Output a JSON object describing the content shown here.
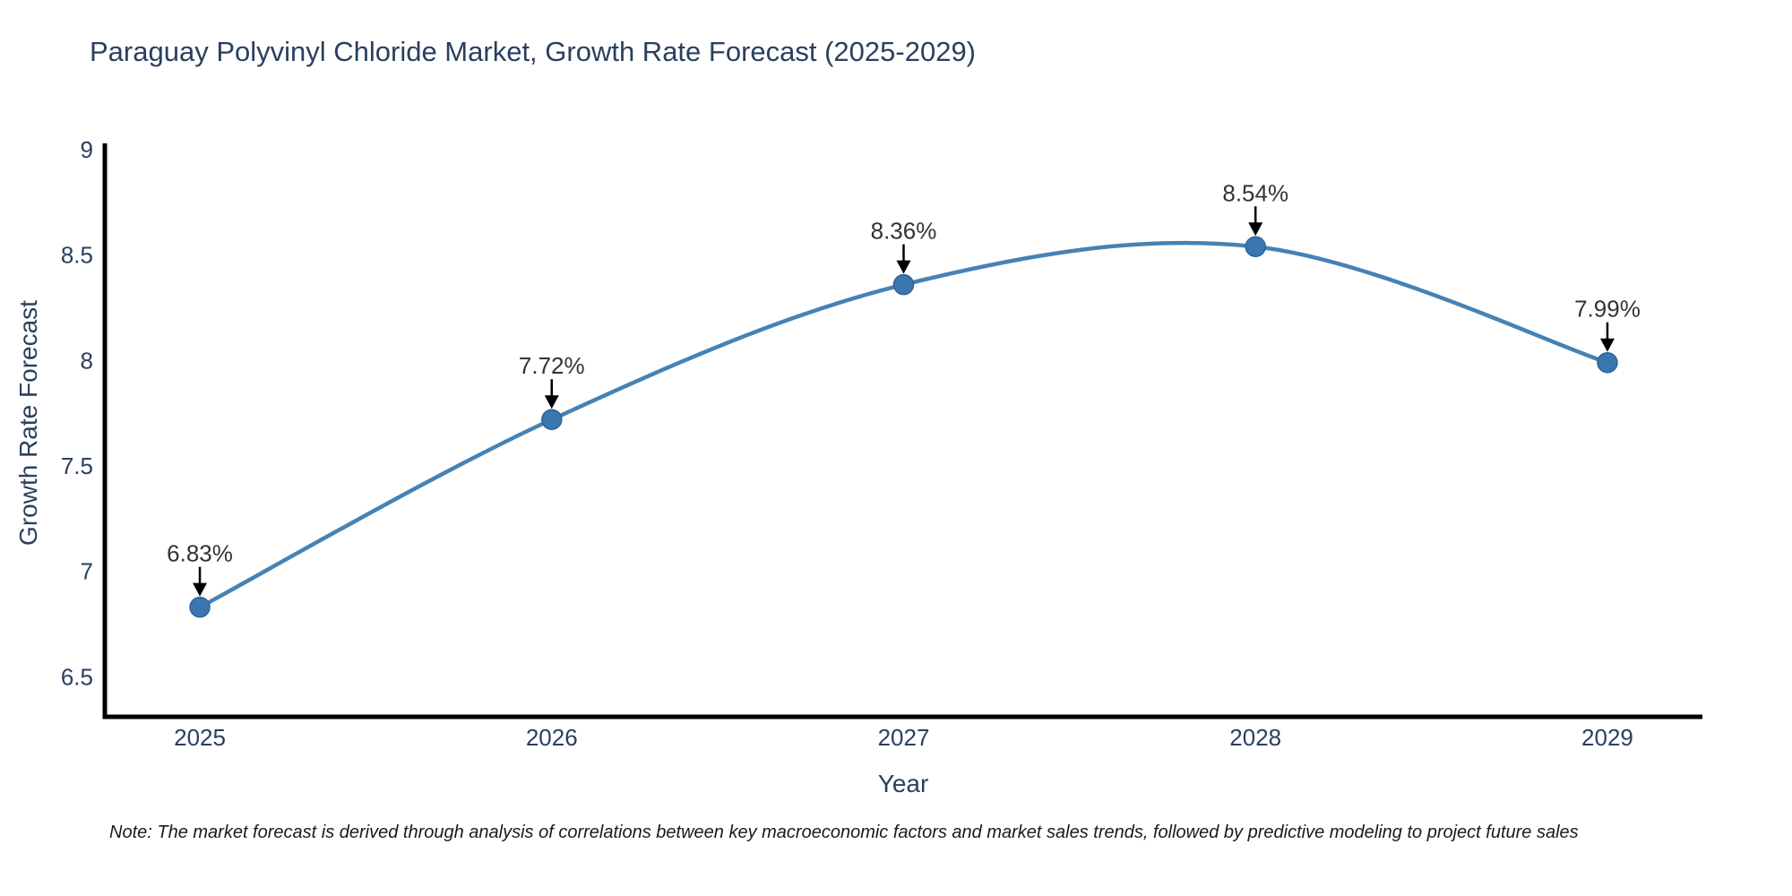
{
  "note": "Note: The market forecast is derived through analysis of correlations between key macroeconomic factors and market sales trends, followed by predictive modeling to project future sales",
  "chart_data": {
    "type": "line",
    "title": "Paraguay Polyvinyl Chloride Market, Growth Rate Forecast (2025-2029)",
    "xlabel": "Year",
    "ylabel": "Growth Rate Forecast",
    "x": [
      2025,
      2026,
      2027,
      2028,
      2029
    ],
    "values": [
      6.83,
      7.72,
      8.36,
      8.54,
      7.99
    ],
    "point_labels": [
      "6.83%",
      "7.72%",
      "8.36%",
      "8.54%",
      "7.99%"
    ],
    "xticks": [
      2025,
      2026,
      2027,
      2028,
      2029
    ],
    "xtick_labels": [
      "2025",
      "2026",
      "2027",
      "2028",
      "2029"
    ],
    "yticks": [
      6.5,
      7,
      7.5,
      8,
      8.5,
      9
    ],
    "ytick_labels": [
      "6.5",
      "7",
      "7.5",
      "8",
      "8.5",
      "9"
    ],
    "xlim": [
      2024.73,
      2029.27
    ],
    "ylim": [
      6.31,
      9.03
    ],
    "grid": false,
    "curve": "spline",
    "legend": "none",
    "line_color": "#4682b4",
    "marker_color": "#3a76b0",
    "marker_edge_color": "#2f6397",
    "axis_color": "#000000",
    "tick_label_color": "#2a3f5f",
    "annotation_color": "#333333",
    "annotation_arrow_color": "#000000"
  }
}
